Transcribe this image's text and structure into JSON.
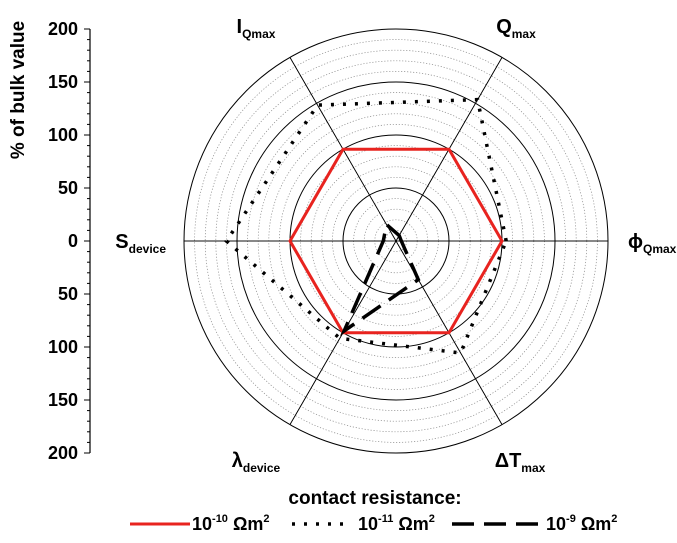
{
  "chart_data": {
    "type": "radar",
    "ylabel": "% of bulk value",
    "rlim": [
      0,
      200
    ],
    "r_ticks": [
      "200",
      "150",
      "100",
      "50",
      "0",
      "50",
      "100",
      "150",
      "200"
    ],
    "grid": true,
    "axes": [
      {
        "id": "phi",
        "base": "ϕ",
        "sub": "Qmax"
      },
      {
        "id": "q",
        "base": "Q",
        "sub": "max"
      },
      {
        "id": "i",
        "base": "I",
        "sub": "Qmax"
      },
      {
        "id": "s",
        "base": "S",
        "sub": "device"
      },
      {
        "id": "lambda",
        "base": "λ",
        "sub": "device"
      },
      {
        "id": "dt",
        "base": "ΔT",
        "sub": "max"
      }
    ],
    "legend": {
      "title": "contact resistance:",
      "placement": "bottom",
      "items": [
        {
          "base": "10",
          "exp": "-10",
          "unit": "Ωm",
          "unit_exp": "2"
        },
        {
          "base": "10",
          "exp": "-11",
          "unit": "Ωm",
          "unit_exp": "2"
        },
        {
          "base": "10",
          "exp": "-9",
          "unit": "Ωm",
          "unit_exp": "2"
        }
      ]
    },
    "series": [
      {
        "values": [
          100,
          100,
          100,
          100,
          100,
          100
        ],
        "color": "#e8231f",
        "style": "solid"
      },
      {
        "values": [
          104,
          154,
          148,
          160,
          106,
          122
        ],
        "color": "#000000",
        "style": "dotted"
      },
      {
        "values": [
          5,
          6,
          18,
          12,
          98,
          42
        ],
        "color": "#000000",
        "style": "dashed"
      }
    ]
  }
}
